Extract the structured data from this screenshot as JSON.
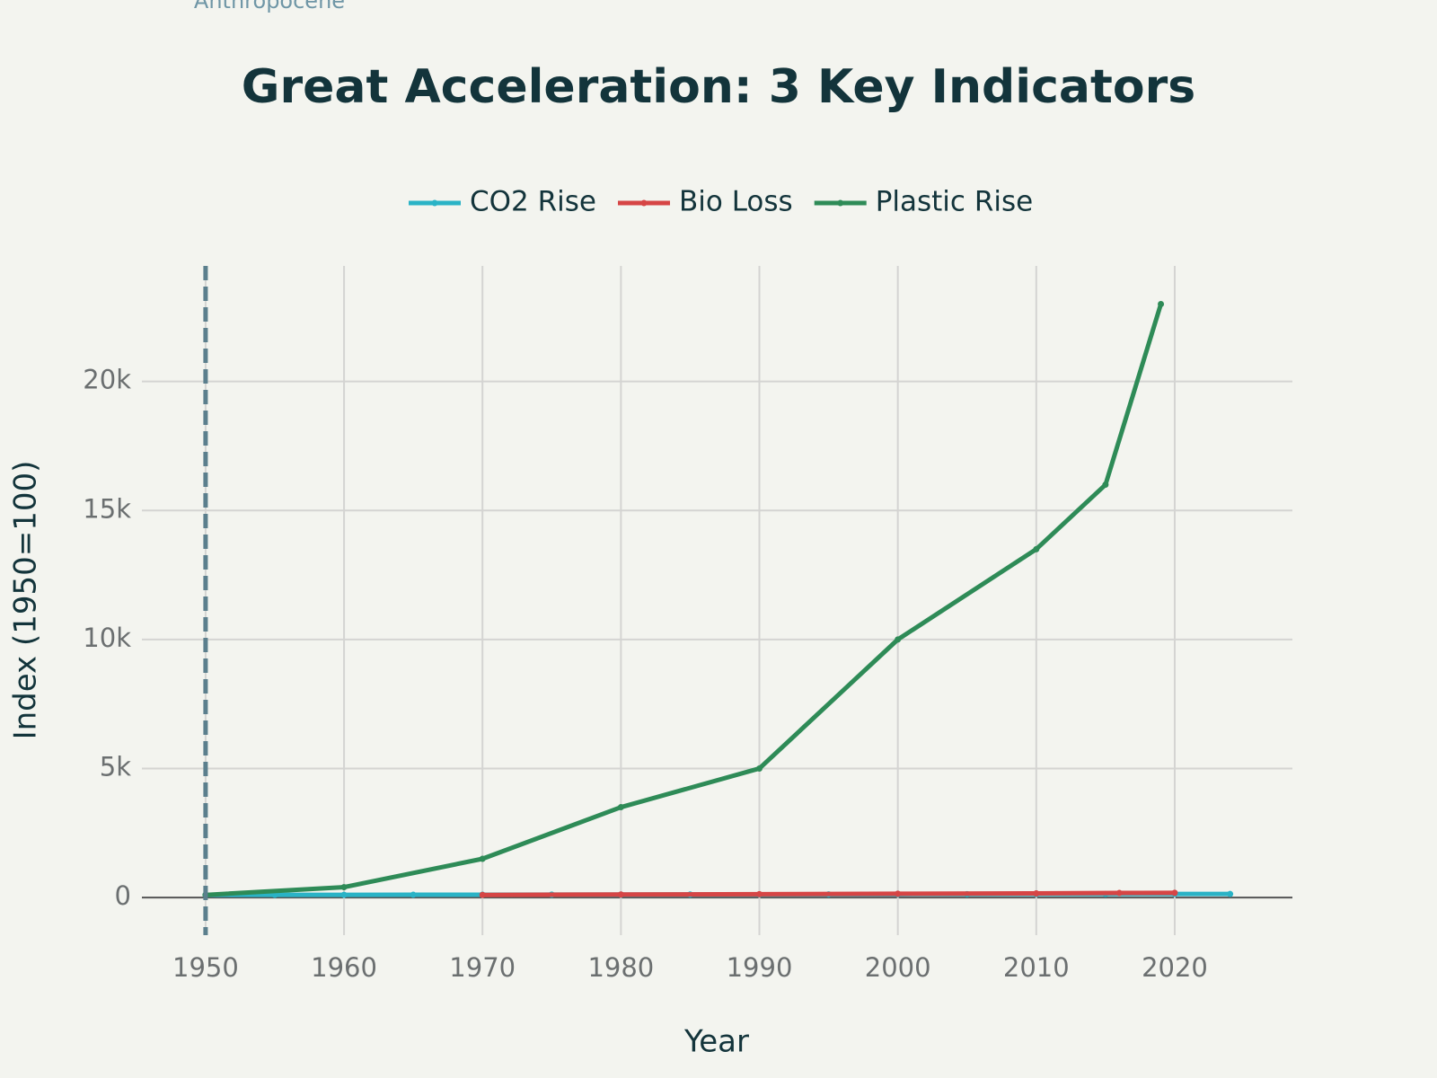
{
  "chart_data": {
    "type": "line",
    "title": "Great Acceleration: 3 Key Indicators",
    "x_label": "Year",
    "y_label": "Index (1950=100)",
    "annotation": "Anthropocene",
    "vline": 1950,
    "vline_color": "#5b7f8d",
    "xlim": [
      1945.4,
      2028.5
    ],
    "xticks": [
      1950,
      1960,
      1970,
      1980,
      1990,
      2000,
      2010,
      2020
    ],
    "ylim": [
      -1460,
      24480
    ],
    "yticks": [
      0,
      {
        "value": 5000,
        "label": "5k"
      },
      {
        "value": 10000,
        "label": "10k"
      },
      {
        "value": 15000,
        "label": "15k"
      },
      {
        "value": 20000,
        "label": "20k"
      }
    ],
    "grid": true,
    "legend": "top",
    "series": [
      {
        "name": "CO2 Rise",
        "color": "#2ab3c6",
        "x": [
          1950,
          1955,
          1960,
          1965,
          1970,
          1975,
          1980,
          1985,
          1990,
          1995,
          2000,
          2005,
          2010,
          2015,
          2020,
          2024
        ],
        "values": [
          100,
          101,
          103,
          105,
          107,
          110,
          112,
          115,
          119,
          122,
          126,
          129,
          132,
          135,
          137,
          136
        ]
      },
      {
        "name": "Bio Loss",
        "color": "#d64545",
        "x": [
          1970,
          1980,
          1990,
          2000,
          2010,
          2016,
          2020
        ],
        "values": [
          100,
          115,
          130,
          145,
          160,
          175,
          180
        ]
      },
      {
        "name": "Plastic Rise",
        "color": "#2e8b57",
        "x": [
          1950,
          1960,
          1970,
          1980,
          1990,
          2000,
          2010,
          2015,
          2019
        ],
        "values": [
          100,
          400,
          1500,
          3500,
          5000,
          10000,
          13500,
          16000,
          23000
        ]
      }
    ]
  }
}
